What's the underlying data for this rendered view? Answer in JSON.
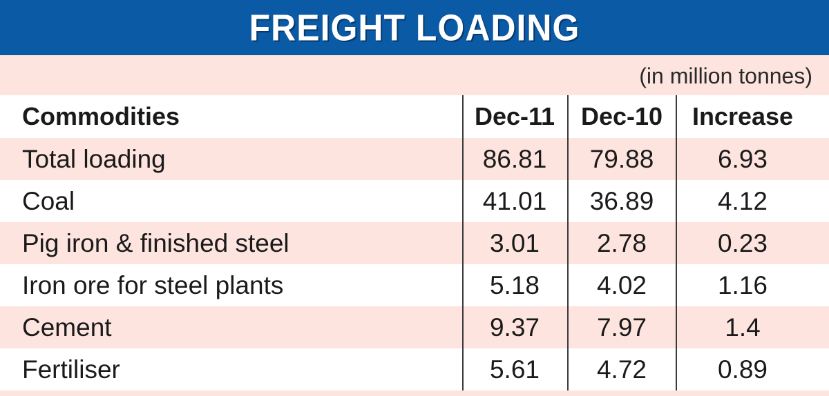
{
  "title": "FREIGHT LOADING",
  "unit_note": "(in million tonnes)",
  "colors": {
    "title_bg": "#0a5aa6",
    "shade": "#fde4df",
    "text": "#1a1a1a"
  },
  "header": {
    "commodity": "Commodities",
    "col1": "Dec-11",
    "col2": "Dec-10",
    "col3": "Increase"
  },
  "chart_data": {
    "type": "table",
    "title": "FREIGHT LOADING",
    "unit": "(in million tonnes)",
    "columns": [
      "Commodities",
      "Dec-11",
      "Dec-10",
      "Increase"
    ],
    "rows": [
      [
        "Total loading",
        "86.81",
        "79.88",
        "6.93"
      ],
      [
        "Coal",
        "41.01",
        "36.89",
        "4.12"
      ],
      [
        "Pig iron & finished steel",
        "3.01",
        "2.78",
        "0.23"
      ],
      [
        "Iron ore for steel plants",
        "5.18",
        "4.02",
        "1.16"
      ],
      [
        "Cement",
        "9.37",
        "7.97",
        "1.4"
      ],
      [
        "Fertiliser",
        "5.61",
        "4.72",
        "0.89"
      ]
    ]
  }
}
